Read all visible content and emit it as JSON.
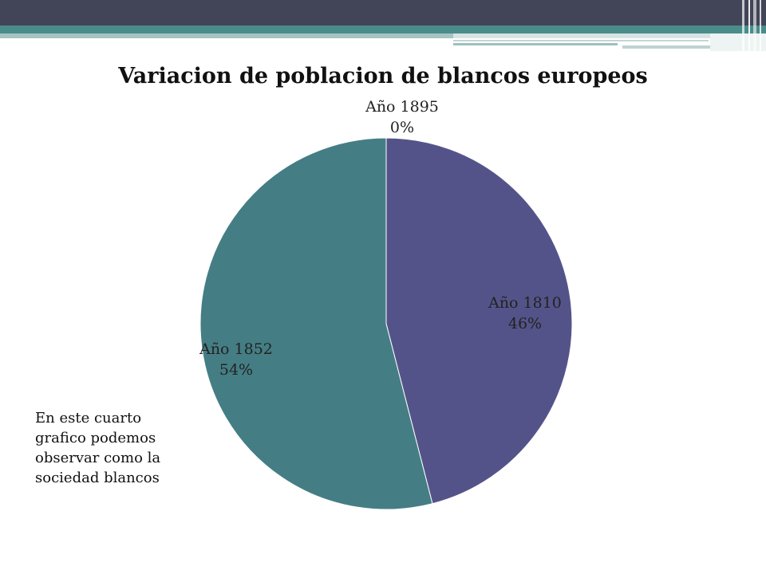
{
  "chart_data": {
    "type": "pie",
    "title": "Variacion de poblacion de blancos europeos",
    "slices": [
      {
        "label": "Año 1810",
        "value": 46,
        "percent_label": "46%",
        "color": "#545389"
      },
      {
        "label": "Año 1852",
        "value": 54,
        "percent_label": "54%",
        "color": "#447e84"
      },
      {
        "label": "Año 1895",
        "value": 0,
        "percent_label": "0%",
        "color": "#5f9aa0"
      }
    ]
  },
  "note": {
    "lines": [
      "En este cuarto",
      "grafico podemos",
      "observar como la",
      "sociedad blancos"
    ]
  },
  "theme": {
    "header_dark": "#424457",
    "header_teal": "#4a8c8a"
  }
}
